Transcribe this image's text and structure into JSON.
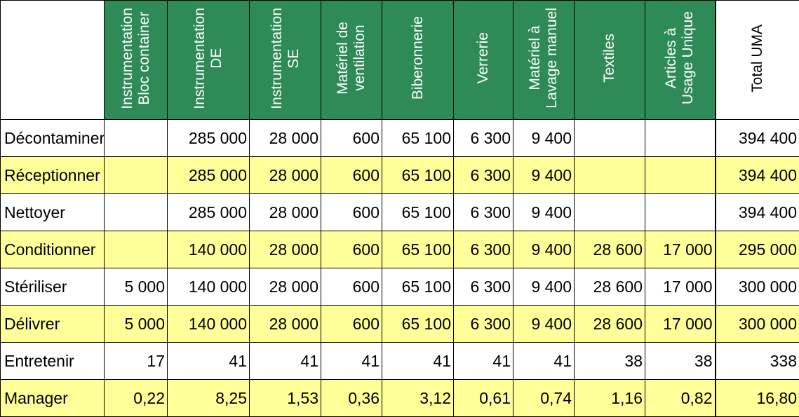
{
  "columns": [
    "Instrumentation\nBloc container",
    "Instrumentation\nDE",
    "Instrumentation\nSE",
    "Matériel de\nventilation",
    "Biberonnerie",
    "Verrerie",
    "Matériel à\nLavage manuel",
    "Textiles",
    "Articles à\nUsage Unique",
    "Total UMA"
  ],
  "rows": [
    {
      "label": "Décontaminer",
      "values": [
        "",
        "285 000",
        "28 000",
        "600",
        "65 100",
        "6 300",
        "9 400",
        "",
        "",
        "394 400"
      ]
    },
    {
      "label": "Réceptionner",
      "values": [
        "",
        "285 000",
        "28 000",
        "600",
        "65 100",
        "6 300",
        "9 400",
        "",
        "",
        "394 400"
      ]
    },
    {
      "label": "Nettoyer",
      "values": [
        "",
        "285 000",
        "28 000",
        "600",
        "65 100",
        "6 300",
        "9 400",
        "",
        "",
        "394 400"
      ]
    },
    {
      "label": "Conditionner",
      "values": [
        "",
        "140 000",
        "28 000",
        "600",
        "65 100",
        "6 300",
        "9 400",
        "28 600",
        "17 000",
        "295 000"
      ]
    },
    {
      "label": "Stériliser",
      "values": [
        "5 000",
        "140 000",
        "28 000",
        "600",
        "65 100",
        "6 300",
        "9 400",
        "28 600",
        "17 000",
        "300 000"
      ]
    },
    {
      "label": "Délivrer",
      "values": [
        "5 000",
        "140 000",
        "28 000",
        "600",
        "65 100",
        "6 300",
        "9 400",
        "28 600",
        "17 000",
        "300 000"
      ]
    },
    {
      "label": "Entretenir",
      "values": [
        "17",
        "41",
        "41",
        "41",
        "41",
        "41",
        "41",
        "38",
        "38",
        "338"
      ]
    },
    {
      "label": "Manager",
      "values": [
        "0,22",
        "8,25",
        "1,53",
        "0,36",
        "3,12",
        "0,61",
        "0,74",
        "1,16",
        "0,82",
        "16,80"
      ]
    }
  ],
  "colors": {
    "header_green": "#2e8b57",
    "row_yellow": "#ffff99"
  }
}
